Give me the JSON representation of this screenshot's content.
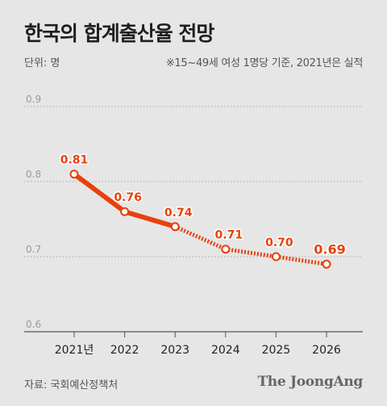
{
  "header": {
    "title": "한국의 합계출산율 전망",
    "unit": "단위: 명",
    "note": "※15~49세 여성 1명당 기준, 2021년은 실적"
  },
  "footer": {
    "source": "자료: 국회예산정책처",
    "logo": "The JoongAng"
  },
  "colors": {
    "line": "#e8400c",
    "grid": "#a8a8a8",
    "background": "#e6e6e6"
  },
  "chart_data": {
    "type": "line",
    "categories": [
      "2021년",
      "2022",
      "2023",
      "2024",
      "2025",
      "2026"
    ],
    "values": [
      0.81,
      0.76,
      0.74,
      0.71,
      0.7,
      0.69
    ],
    "data_labels": [
      "0.81",
      "0.76",
      "0.74",
      "0.71",
      "0.70",
      "0.69"
    ],
    "yticks": [
      "0.9",
      "0.8",
      "0.7",
      "0.6"
    ],
    "ylim": [
      0.6,
      0.9
    ],
    "actual_or_estimate_solid_through": "2023",
    "dashed_from": "2023",
    "grid": true,
    "title": "",
    "xlabel": "",
    "ylabel": ""
  }
}
